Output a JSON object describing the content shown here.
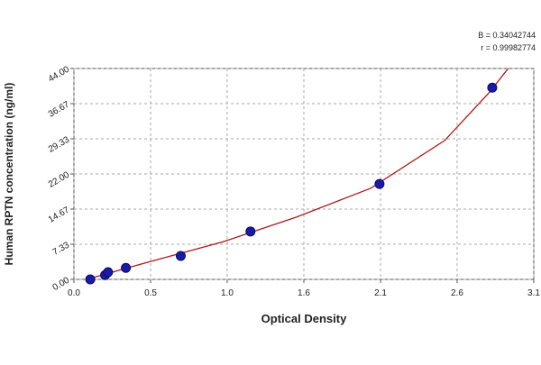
{
  "chart_data": {
    "type": "scatter",
    "y_label": "Human RPTN concentration (ng/ml)",
    "x_label": "Optical Density",
    "annotations": [
      "B = 0.34042744",
      "r = 0.99982774"
    ],
    "points": {
      "color": "#1a1aa8",
      "x": [
        0.11,
        0.21,
        0.23,
        0.35,
        0.72,
        1.19,
        2.06,
        2.82
      ],
      "y": [
        0,
        0.9,
        1.5,
        2.4,
        4.9,
        10,
        19.9,
        40
      ]
    },
    "fit_curve": {
      "color": "#b01818",
      "x": [
        0.11,
        0.5,
        1.0,
        1.5,
        2.0,
        2.5,
        2.8,
        2.94
      ],
      "y": [
        0.2,
        3.6,
        7.8,
        13,
        19,
        29,
        39,
        44.5
      ]
    },
    "xlim": [
      0,
      3.1
    ],
    "xticks": [
      {
        "value": 0,
        "label": "0.0"
      },
      {
        "value": 0.517,
        "label": "0.5"
      },
      {
        "value": 1.033,
        "label": "1.0"
      },
      {
        "value": 1.55,
        "label": "1.6"
      },
      {
        "value": 2.067,
        "label": "2.1"
      },
      {
        "value": 2.583,
        "label": "2.6"
      },
      3.1
    ],
    "ylim": [
      0,
      44
    ],
    "yticks": [
      {
        "value": 0,
        "label": "0.00"
      },
      7.33,
      14.67,
      {
        "value": 22,
        "label": "22.00"
      },
      29.33,
      36.67,
      {
        "value": 44,
        "label": "44.00"
      }
    ],
    "grid": true
  }
}
